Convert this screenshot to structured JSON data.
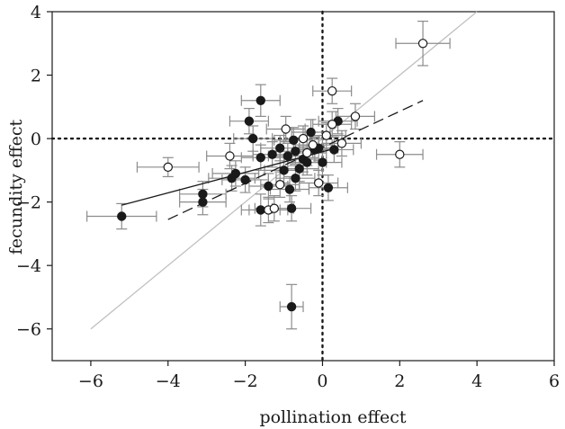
{
  "chart_data": {
    "type": "scatter",
    "title": "",
    "xlabel": "pollination effect",
    "ylabel": "fecundity effect",
    "xlim": [
      -7,
      6
    ],
    "ylim": [
      -7,
      4
    ],
    "xticks": [
      -6,
      -4,
      -2,
      0,
      2,
      4,
      6
    ],
    "yticks": [
      -6,
      -4,
      -2,
      0,
      2,
      4
    ],
    "xtick_labels": [
      "−6",
      "−4",
      "−2",
      "0",
      "2",
      "4",
      "6"
    ],
    "ytick_labels": [
      "−6",
      "−4",
      "−2",
      "0",
      "2",
      "4"
    ],
    "grid": false,
    "reference_lines": [
      {
        "kind": "vertical",
        "value": 0,
        "style": "dotted"
      },
      {
        "kind": "horizontal",
        "value": 0,
        "style": "dotted"
      },
      {
        "kind": "one_to_one",
        "from": [
          -6,
          -6
        ],
        "to": [
          4,
          4
        ],
        "style": "solid",
        "color": "#c0c0c0"
      }
    ],
    "fit_lines": [
      {
        "series": "filled",
        "from": [
          -5.2,
          -2.1
        ],
        "to": [
          0.2,
          -0.35
        ],
        "style": "solid"
      },
      {
        "series": "open",
        "from": [
          -4,
          -2.55
        ],
        "to": [
          2.6,
          1.2
        ],
        "style": "dashed"
      }
    ],
    "series": [
      {
        "marker": "filled",
        "points": [
          {
            "x": -5.2,
            "y": -2.45,
            "xerr": 0.9,
            "yerr": 0.4
          },
          {
            "x": -3.1,
            "y": -1.75,
            "xerr": 0.6,
            "yerr": 0.4
          },
          {
            "x": -3.1,
            "y": -2.0,
            "xerr": 0.6,
            "yerr": 0.4
          },
          {
            "x": -2.35,
            "y": -1.25,
            "xerr": 0.6,
            "yerr": 0.4
          },
          {
            "x": -2.25,
            "y": -1.1,
            "xerr": 0.6,
            "yerr": 0.4
          },
          {
            "x": -2.0,
            "y": -1.3,
            "xerr": 0.6,
            "yerr": 0.4
          },
          {
            "x": -1.9,
            "y": 0.55,
            "xerr": 0.5,
            "yerr": 0.4
          },
          {
            "x": -1.8,
            "y": 0.0,
            "xerr": 0.5,
            "yerr": 0.4
          },
          {
            "x": -1.6,
            "y": 1.2,
            "xerr": 0.5,
            "yerr": 0.5
          },
          {
            "x": -1.6,
            "y": -0.6,
            "xerr": 0.5,
            "yerr": 0.4
          },
          {
            "x": -1.6,
            "y": -2.25,
            "xerr": 0.5,
            "yerr": 0.5
          },
          {
            "x": -1.4,
            "y": -1.5,
            "xerr": 0.5,
            "yerr": 0.4
          },
          {
            "x": -1.3,
            "y": -0.5,
            "xerr": 0.5,
            "yerr": 0.4
          },
          {
            "x": -1.1,
            "y": -0.3,
            "xerr": 0.5,
            "yerr": 0.4
          },
          {
            "x": -1.0,
            "y": -1.0,
            "xerr": 0.5,
            "yerr": 0.4
          },
          {
            "x": -0.9,
            "y": -0.55,
            "xerr": 0.5,
            "yerr": 0.4
          },
          {
            "x": -0.85,
            "y": -1.6,
            "xerr": 0.5,
            "yerr": 0.4
          },
          {
            "x": -0.8,
            "y": -2.2,
            "xerr": 0.5,
            "yerr": 0.4
          },
          {
            "x": -0.75,
            "y": -0.05,
            "xerr": 0.5,
            "yerr": 0.4
          },
          {
            "x": -0.7,
            "y": -0.4,
            "xerr": 0.5,
            "yerr": 0.4
          },
          {
            "x": -0.7,
            "y": -1.25,
            "xerr": 0.5,
            "yerr": 0.4
          },
          {
            "x": -0.6,
            "y": -0.95,
            "xerr": 0.5,
            "yerr": 0.4
          },
          {
            "x": -0.5,
            "y": -0.65,
            "xerr": 0.5,
            "yerr": 0.4
          },
          {
            "x": -0.4,
            "y": -0.75,
            "xerr": 0.5,
            "yerr": 0.4
          },
          {
            "x": -0.3,
            "y": 0.2,
            "xerr": 0.5,
            "yerr": 0.4
          },
          {
            "x": -0.2,
            "y": -0.35,
            "xerr": 0.5,
            "yerr": 0.4
          },
          {
            "x": -0.1,
            "y": -0.3,
            "xerr": 0.5,
            "yerr": 0.4
          },
          {
            "x": 0.0,
            "y": -0.75,
            "xerr": 0.5,
            "yerr": 0.4
          },
          {
            "x": 0.15,
            "y": -1.55,
            "xerr": 0.5,
            "yerr": 0.4
          },
          {
            "x": 0.3,
            "y": -0.35,
            "xerr": 0.5,
            "yerr": 0.4
          },
          {
            "x": 0.4,
            "y": 0.55,
            "xerr": 0.5,
            "yerr": 0.4
          },
          {
            "x": -0.8,
            "y": -5.3,
            "xerr": 0.3,
            "yerr": 0.7
          }
        ]
      },
      {
        "marker": "open",
        "points": [
          {
            "x": -4.0,
            "y": -0.9,
            "xerr": 0.8,
            "yerr": 0.3
          },
          {
            "x": -2.4,
            "y": -0.55,
            "xerr": 0.6,
            "yerr": 0.4
          },
          {
            "x": -1.4,
            "y": -2.25,
            "xerr": 0.5,
            "yerr": 0.4
          },
          {
            "x": -1.25,
            "y": -2.2,
            "xerr": 0.5,
            "yerr": 0.4
          },
          {
            "x": -1.1,
            "y": -1.45,
            "xerr": 0.5,
            "yerr": 0.4
          },
          {
            "x": -0.95,
            "y": 0.3,
            "xerr": 0.5,
            "yerr": 0.4
          },
          {
            "x": -0.5,
            "y": 0.0,
            "xerr": 0.5,
            "yerr": 0.4
          },
          {
            "x": -0.4,
            "y": -0.45,
            "xerr": 0.5,
            "yerr": 0.4
          },
          {
            "x": -0.25,
            "y": -0.2,
            "xerr": 0.5,
            "yerr": 0.4
          },
          {
            "x": -0.1,
            "y": -1.4,
            "xerr": 0.5,
            "yerr": 0.4
          },
          {
            "x": 0.1,
            "y": 0.1,
            "xerr": 0.5,
            "yerr": 0.4
          },
          {
            "x": 0.25,
            "y": 1.5,
            "xerr": 0.5,
            "yerr": 0.4
          },
          {
            "x": 0.25,
            "y": 0.45,
            "xerr": 0.5,
            "yerr": 0.4
          },
          {
            "x": 0.5,
            "y": -0.15,
            "xerr": 0.5,
            "yerr": 0.4
          },
          {
            "x": 0.85,
            "y": 0.7,
            "xerr": 0.5,
            "yerr": 0.4
          },
          {
            "x": 2.0,
            "y": -0.5,
            "xerr": 0.6,
            "yerr": 0.4
          },
          {
            "x": 2.6,
            "y": 3.0,
            "xerr": 0.7,
            "yerr": 0.7
          }
        ]
      }
    ]
  }
}
